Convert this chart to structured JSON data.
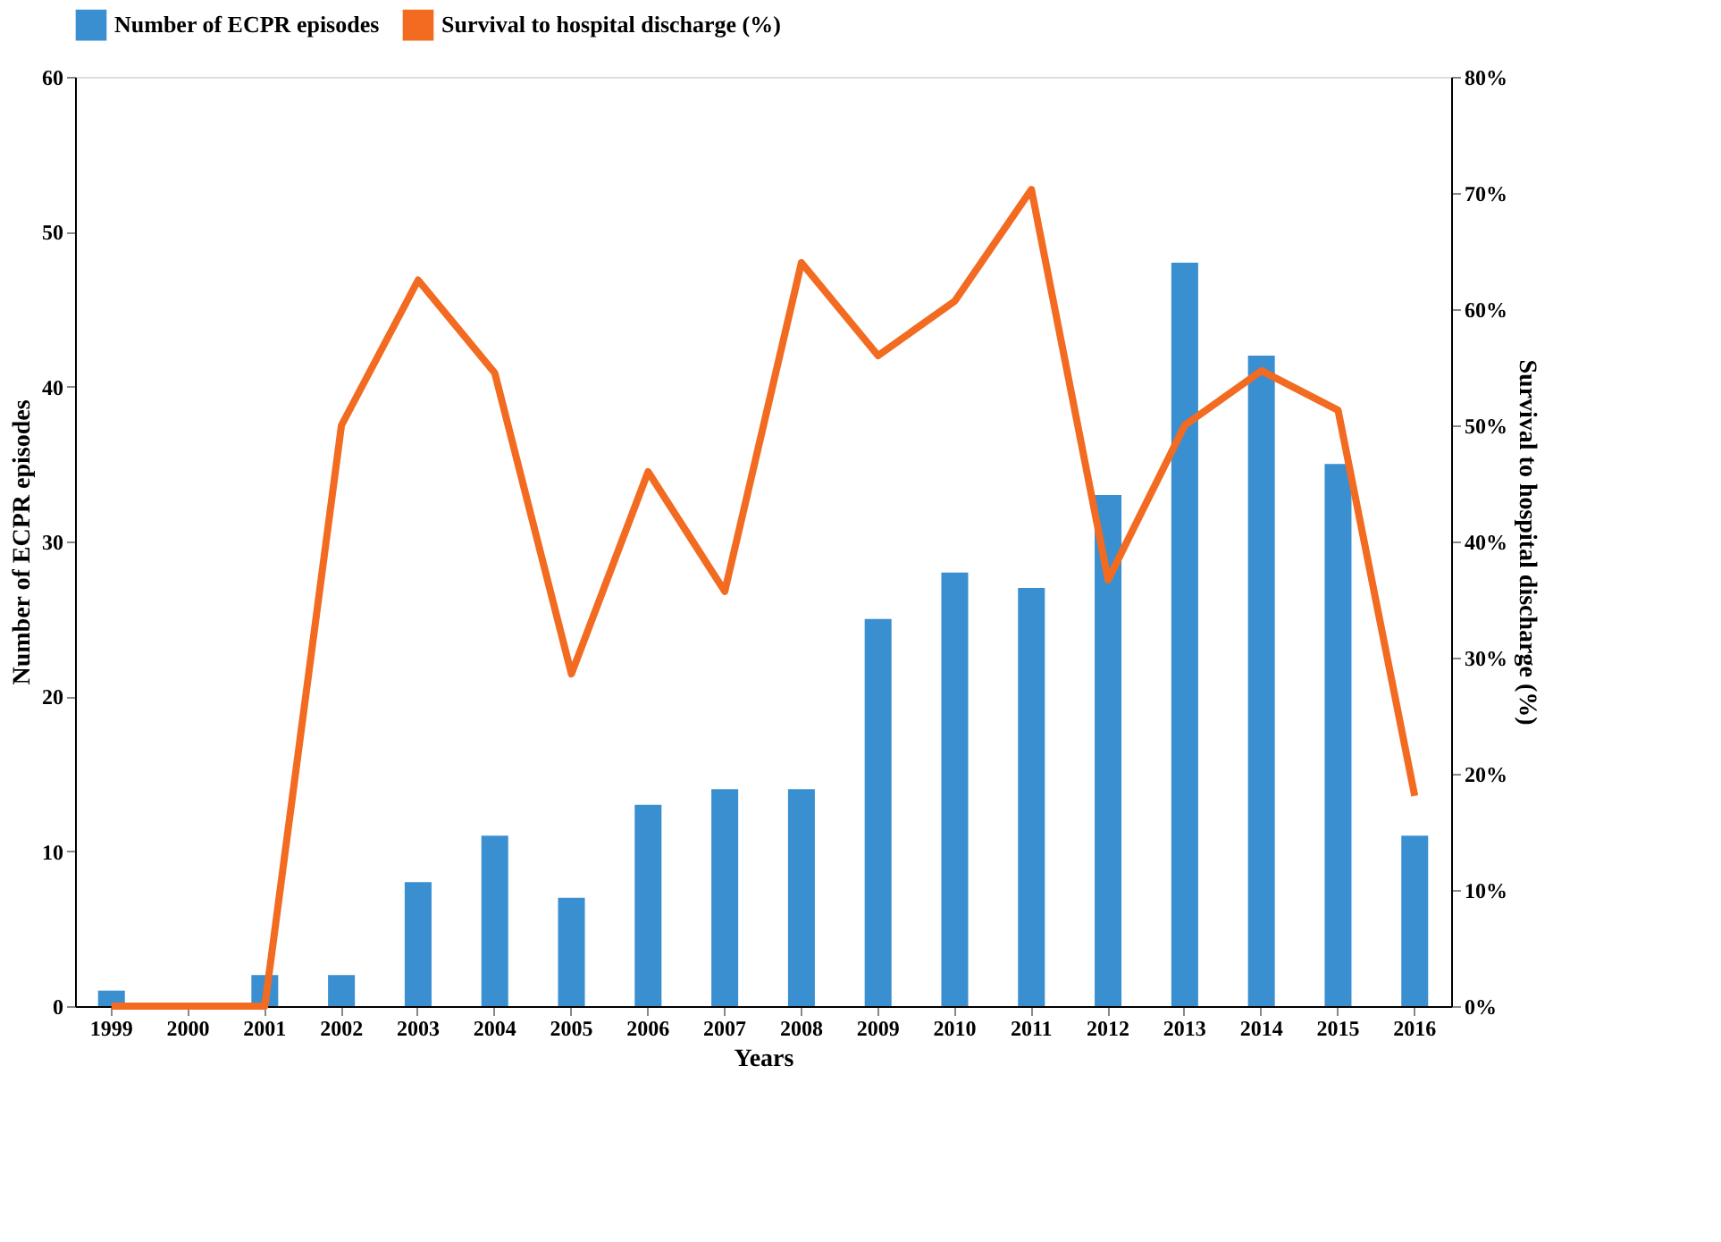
{
  "chart_data": {
    "type": "bar",
    "categories": [
      "1999",
      "2000",
      "2001",
      "2002",
      "2003",
      "2004",
      "2005",
      "2006",
      "2007",
      "2008",
      "2009",
      "2010",
      "2011",
      "2012",
      "2013",
      "2014",
      "2015",
      "2016"
    ],
    "series": [
      {
        "name": "Number of ECPR episodes",
        "color": "#3a8fd0",
        "values": [
          1,
          0,
          2,
          2,
          8,
          11,
          7,
          13,
          14,
          14,
          25,
          28,
          27,
          33,
          48,
          42,
          35,
          11
        ]
      },
      {
        "name": "Survival to hospital discharge (%)",
        "type": "line",
        "axis": "y2",
        "color": "#f26b21",
        "values": [
          0,
          0,
          0,
          50,
          62.5,
          54.5,
          28.6,
          46,
          35.7,
          64,
          56,
          60.7,
          70.3,
          36.7,
          50,
          54.7,
          51.3,
          18.1
        ]
      }
    ],
    "xlabel": "Years",
    "ylabel": "Number of ECPR episodes",
    "y2label": "Survival to hospital discharge (%)",
    "ylim": [
      0,
      60
    ],
    "yticks": [
      0,
      10,
      20,
      30,
      40,
      50,
      60
    ],
    "y2lim": [
      0,
      80
    ],
    "y2ticks": [
      {
        "value": 0,
        "label": "0%"
      },
      {
        "value": 10,
        "label": "10%"
      },
      {
        "value": 20,
        "label": "20%"
      },
      {
        "value": 30,
        "label": "30%"
      },
      {
        "value": 40,
        "label": "40%"
      },
      {
        "value": 50,
        "label": "50%"
      },
      {
        "value": 60,
        "label": "60%"
      },
      {
        "value": 70,
        "label": "70%"
      },
      {
        "value": 80,
        "label": "80%"
      }
    ],
    "legend": "top"
  }
}
